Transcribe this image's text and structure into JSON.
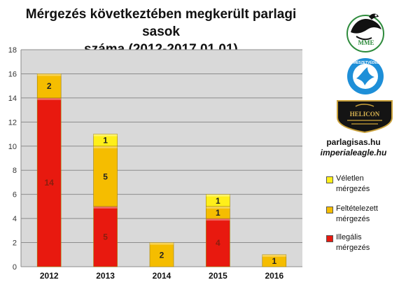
{
  "chart_data": {
    "type": "bar",
    "stacked": true,
    "title": "Mérgezés következtében megkerült parlagi sasok száma (2012-2017.01.01)",
    "title_lines": [
      "Mérgezés következtében megkerült parlagi sasok",
      "száma (2012-2017.01.01)"
    ],
    "categories": [
      "2012",
      "2013",
      "2014",
      "2015",
      "2016"
    ],
    "ylim": [
      0,
      18
    ],
    "yticks": [
      "0",
      "2",
      "4",
      "6",
      "8",
      "10",
      "12",
      "14",
      "16",
      "18"
    ],
    "grid": true,
    "legend_position": "right",
    "series": [
      {
        "name": "Illegális mérgezés",
        "name_lines": [
          "Illegális",
          "mérgezés"
        ],
        "color": "#e8190f",
        "values": [
          14,
          5,
          0,
          4,
          0
        ]
      },
      {
        "name": "Feltételezett mérgezés",
        "name_lines": [
          "Feltételezett",
          "mérgezés"
        ],
        "color": "#f5bd00",
        "values": [
          2,
          5,
          2,
          1,
          1
        ]
      },
      {
        "name": "Véletlen mérgezés",
        "name_lines": [
          "Véletlen",
          "mérgezés"
        ],
        "color": "#ffef1a",
        "values": [
          0,
          1,
          0,
          1,
          0
        ]
      }
    ],
    "data_labels": [
      [
        "14",
        "5",
        "",
        "4",
        ""
      ],
      [
        "2",
        "5",
        "2",
        "1",
        "1"
      ],
      [
        "",
        "1",
        "",
        "1",
        ""
      ]
    ]
  },
  "branding": {
    "logos": [
      {
        "name": "MME",
        "icon": "eagle-logo-icon",
        "text": "MME"
      },
      {
        "name": "Természetvédelem",
        "icon": "bird-circle-logo-icon",
        "text": "TERMÉSZETVÉDELEM"
      },
      {
        "name": "HELICON",
        "icon": "helicon-shield-logo-icon",
        "text": "HELICON"
      }
    ],
    "site_1": "parlagisas.hu",
    "site_2": "imperialeagle.hu"
  }
}
